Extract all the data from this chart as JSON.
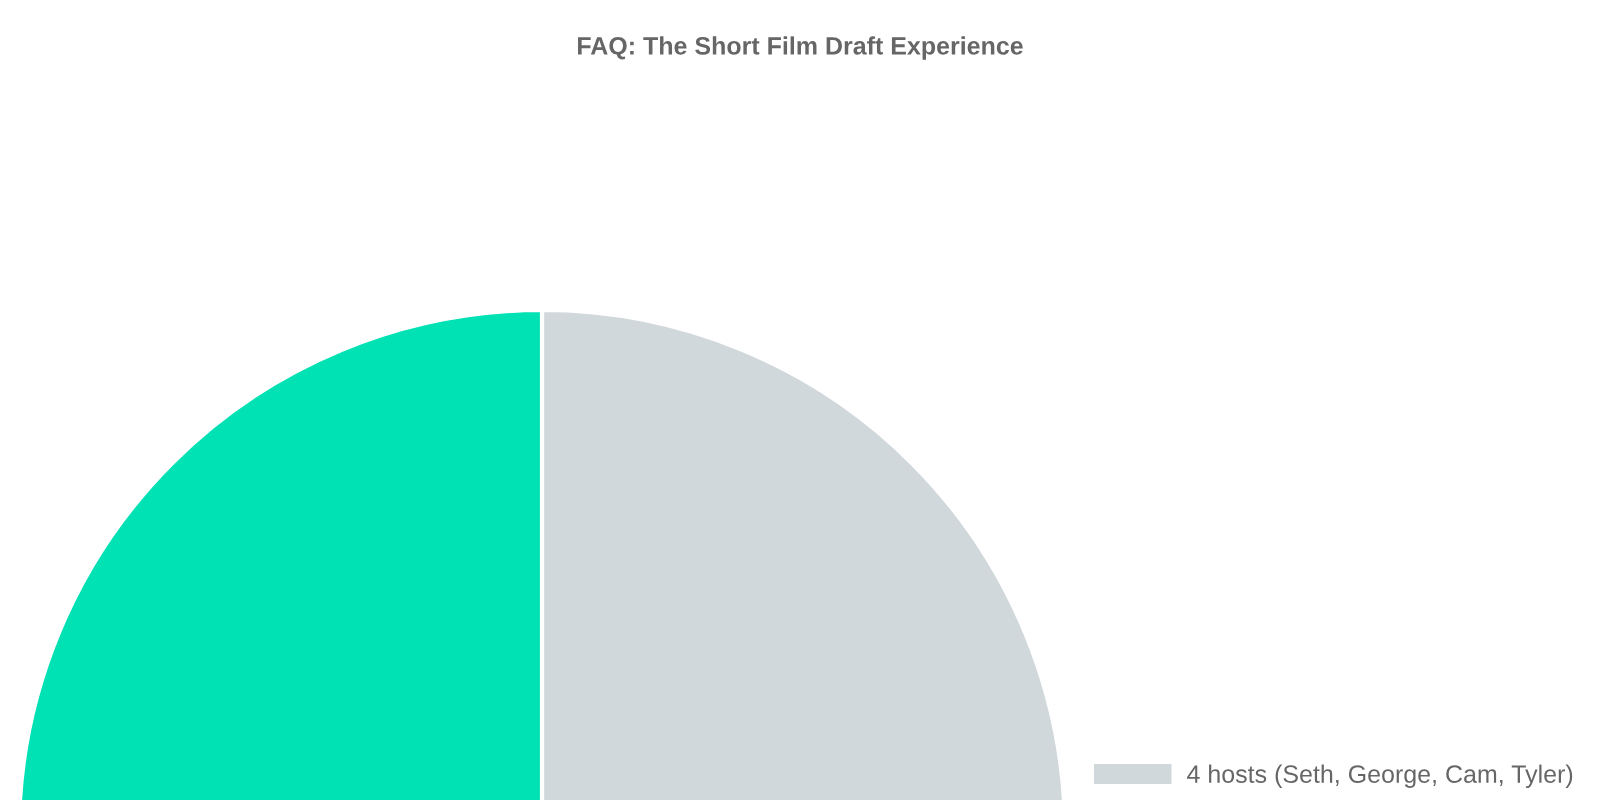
{
  "chart_data": {
    "type": "pie",
    "title": "FAQ: The Short Film Draft Experience",
    "categories": [
      "4 hosts (Seth, George, Cam, Tyler)",
      null
    ],
    "values": [
      50,
      50
    ],
    "colors": [
      "#d1d8db",
      "#00e1b4"
    ],
    "legend": "right"
  }
}
